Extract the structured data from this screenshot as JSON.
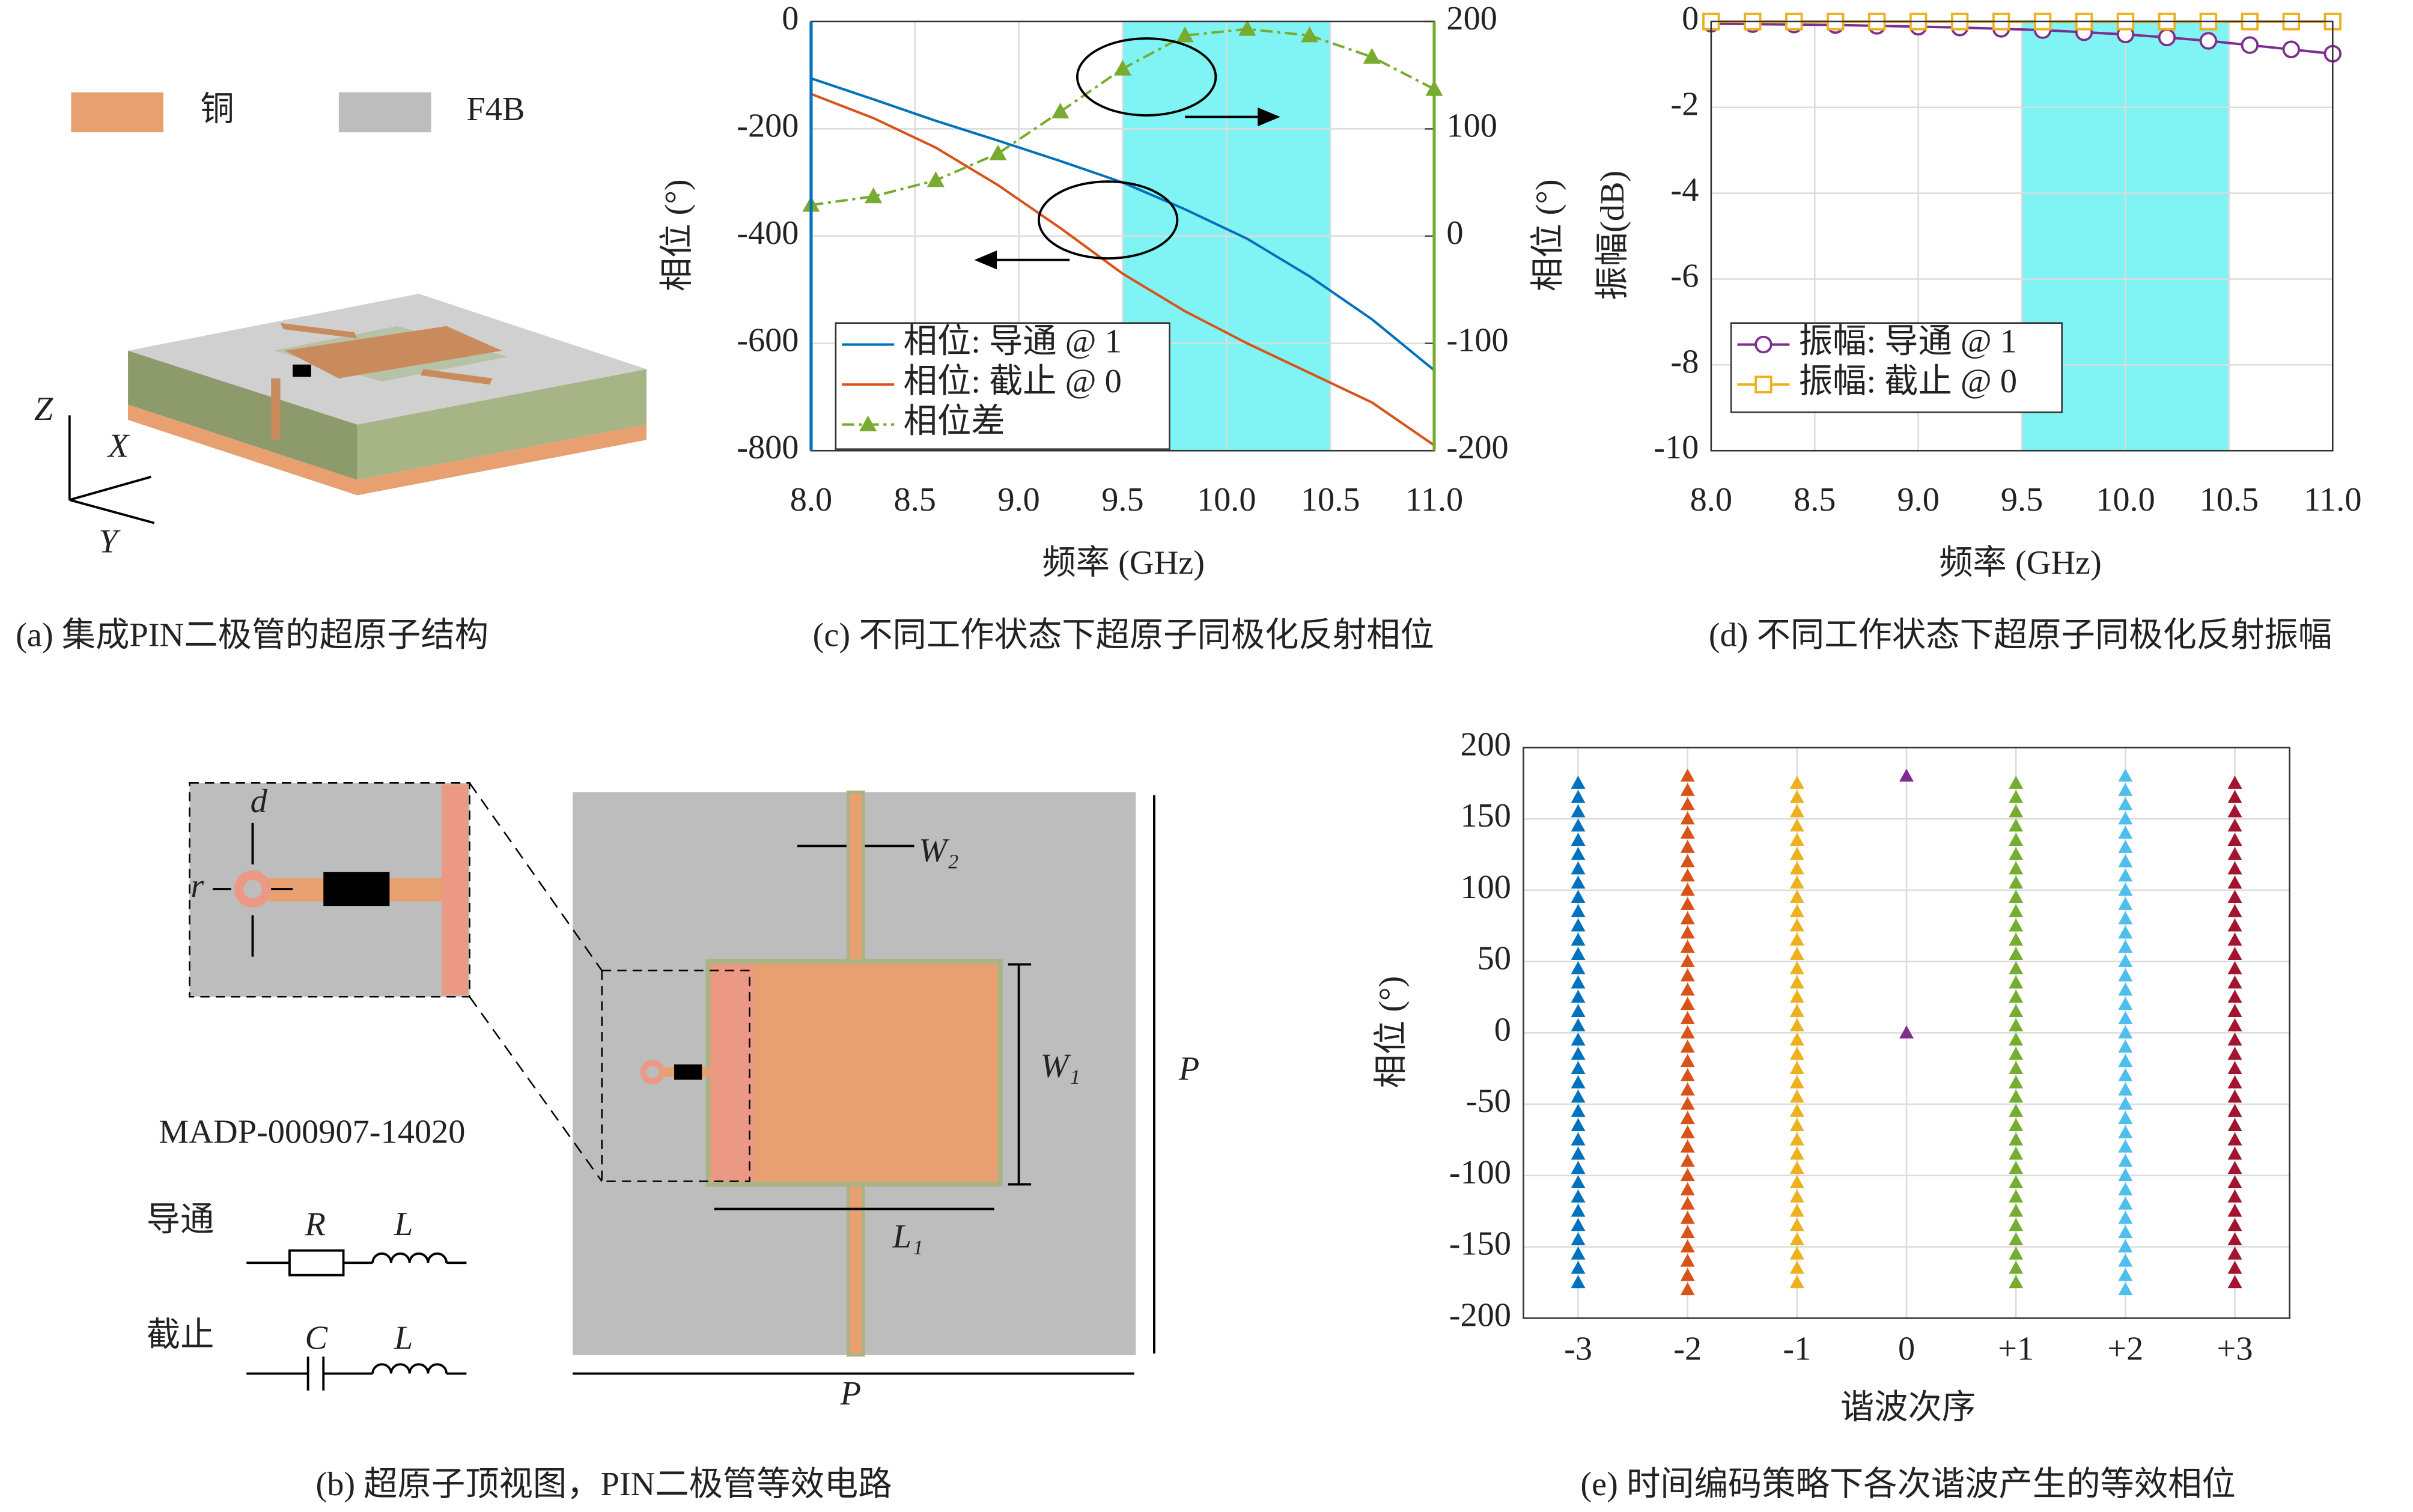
{
  "figure_a": {
    "legend": [
      "铜",
      "F4B"
    ],
    "axes": [
      "Z",
      "X",
      "Y"
    ],
    "caption": "(a) 集成PIN二极管的超原子结构"
  },
  "figure_b": {
    "labels": {
      "d": "d",
      "r": "r",
      "w2": "W₂",
      "w1": "W₁",
      "p_side": "P",
      "p_bottom": "P",
      "l1": "L₁"
    },
    "part": "MADP-000907-14020",
    "on": "导通",
    "on_r": "R",
    "on_l": "L",
    "off": "截止",
    "off_c": "C",
    "off_l": "L",
    "caption": "(b) 超原子顶视图，PIN二极管等效电路"
  },
  "chart_data": [
    {
      "type": "line",
      "caption": "(c) 不同工作状态下超原子同极化反射相位",
      "xlabel": "频率 (GHz)",
      "ylabel": "相位 (°)",
      "y2label": "相位 (°)",
      "x": [
        8,
        8.3,
        8.6,
        8.9,
        9.2,
        9.5,
        9.8,
        10.1,
        10.4,
        10.7,
        11
      ],
      "xlim": [
        8,
        11
      ],
      "xticks": [
        {
          "value": 8,
          "label": "8.0"
        },
        8.5,
        {
          "value": 9,
          "label": "9.0"
        },
        9.5,
        {
          "value": 10,
          "label": "10.0"
        },
        10.5,
        {
          "value": 11,
          "label": "11.0"
        }
      ],
      "ylim": [
        -800,
        0
      ],
      "yticks": [
        0,
        -200,
        -400,
        -600,
        -800
      ],
      "y2lim": [
        -200,
        200
      ],
      "y2ticks": [
        200,
        100,
        0,
        -100,
        -200
      ],
      "grid": true,
      "legend": "lower left",
      "highlight": [
        9.5,
        10.5
      ],
      "highlight_color": "#80f4f4",
      "axis_colors": {
        "y": "#0072bd",
        "y2": "#77ac30"
      },
      "series": [
        {
          "name": "相位: 导通 @ 1",
          "color": "#0072bd",
          "values": [
            -106,
            -145,
            -185,
            -222,
            -260,
            -300,
            -350,
            -405,
            -475,
            -555,
            -650
          ]
        },
        {
          "name": "相位: 截止 @ 0",
          "color": "#d95319",
          "values": [
            -135,
            -180,
            -235,
            -305,
            -385,
            -470,
            -540,
            -600,
            -655,
            -710,
            -790
          ]
        },
        {
          "name": "相位差",
          "color": "#77ac30",
          "axis": "y2",
          "marker": "triangle",
          "linestyle": "dashdot",
          "values": [
            29,
            37,
            52,
            77,
            116,
            156,
            187,
            193,
            187,
            167,
            137
          ]
        }
      ]
    },
    {
      "type": "line",
      "caption": "(d) 不同工作状态下超原子同极化反射振幅",
      "xlabel": "频率 (GHz)",
      "ylabel": "振幅(dB)",
      "x": [
        8,
        8.2,
        8.4,
        8.6,
        8.8,
        9,
        9.2,
        9.4,
        9.6,
        9.8,
        10,
        10.2,
        10.4,
        10.6,
        10.8,
        11
      ],
      "xlim": [
        8,
        11
      ],
      "xticks": [
        {
          "value": 8,
          "label": "8.0"
        },
        8.5,
        {
          "value": 9,
          "label": "9.0"
        },
        9.5,
        {
          "value": 10,
          "label": "10.0"
        },
        10.5,
        {
          "value": 11,
          "label": "11.0"
        }
      ],
      "ylim": [
        -10,
        0
      ],
      "yticks": [
        0,
        -2,
        -4,
        -6,
        -8,
        -10
      ],
      "grid": true,
      "legend": "lower left",
      "highlight": [
        9.5,
        10.5
      ],
      "highlight_color": "#80f4f4",
      "series": [
        {
          "name": "振幅: 导通 @ 1",
          "color": "#7e2f8e",
          "marker": "circle",
          "values": [
            -0.05,
            -0.06,
            -0.07,
            -0.08,
            -0.1,
            -0.12,
            -0.14,
            -0.17,
            -0.2,
            -0.25,
            -0.3,
            -0.37,
            -0.45,
            -0.55,
            -0.65,
            -0.75
          ]
        },
        {
          "name": "振幅: 截止 @ 0",
          "color": "#edb120",
          "marker": "square",
          "values": [
            0,
            0,
            0,
            0,
            0,
            0,
            0,
            0,
            0,
            0,
            0,
            0,
            0,
            0,
            0,
            0
          ]
        }
      ]
    },
    {
      "type": "scatter",
      "caption": "(e) 时间编码策略下各次谐波产生的等效相位",
      "xlabel": "谐波次序",
      "ylabel": "相位 (°)",
      "categories": [
        "-3",
        "-2",
        "-1",
        "0",
        "+1",
        "+2",
        "+3"
      ],
      "ylim": [
        -200,
        200
      ],
      "yticks": [
        200,
        150,
        100,
        50,
        0,
        -50,
        -100,
        -150,
        -200
      ],
      "grid": true,
      "series": [
        {
          "color": "#0072bd",
          "values": [
            -175,
            -165,
            -155,
            -145,
            -135,
            -125,
            -115,
            -105,
            -95,
            -85,
            -75,
            -65,
            -55,
            -45,
            -35,
            -25,
            -15,
            -5,
            5,
            15,
            25,
            35,
            45,
            55,
            65,
            75,
            85,
            95,
            105,
            115,
            125,
            135,
            145,
            155,
            165,
            175
          ]
        },
        {
          "color": "#d95319",
          "values": [
            -180,
            -170,
            -160,
            -150,
            -140,
            -130,
            -120,
            -110,
            -100,
            -90,
            -80,
            -70,
            -60,
            -50,
            -40,
            -30,
            -20,
            -10,
            0,
            10,
            20,
            30,
            40,
            50,
            60,
            70,
            80,
            90,
            100,
            110,
            120,
            130,
            140,
            150,
            160,
            170,
            180
          ]
        },
        {
          "color": "#edb120",
          "values": [
            -175,
            -165,
            -155,
            -145,
            -135,
            -125,
            -115,
            -105,
            -95,
            -85,
            -75,
            -65,
            -55,
            -45,
            -35,
            -25,
            -15,
            -5,
            5,
            15,
            25,
            35,
            45,
            55,
            65,
            75,
            85,
            95,
            105,
            115,
            125,
            135,
            145,
            155,
            165,
            175
          ]
        },
        {
          "color": "#7e2f8e",
          "values": [
            180,
            0
          ]
        },
        {
          "color": "#77ac30",
          "values": [
            -175,
            -165,
            -155,
            -145,
            -135,
            -125,
            -115,
            -105,
            -95,
            -85,
            -75,
            -65,
            -55,
            -45,
            -35,
            -25,
            -15,
            -5,
            5,
            15,
            25,
            35,
            45,
            55,
            65,
            75,
            85,
            95,
            105,
            115,
            125,
            135,
            145,
            155,
            165,
            175
          ]
        },
        {
          "color": "#4dbeee",
          "values": [
            -180,
            -170,
            -160,
            -150,
            -140,
            -130,
            -120,
            -110,
            -100,
            -90,
            -80,
            -70,
            -60,
            -50,
            -40,
            -30,
            -20,
            -10,
            0,
            10,
            20,
            30,
            40,
            50,
            60,
            70,
            80,
            90,
            100,
            110,
            120,
            130,
            140,
            150,
            160,
            170,
            180
          ]
        },
        {
          "color": "#a2142f",
          "values": [
            -175,
            -165,
            -155,
            -145,
            -135,
            -125,
            -115,
            -105,
            -95,
            -85,
            -75,
            -65,
            -55,
            -45,
            -35,
            -25,
            -15,
            -5,
            5,
            15,
            25,
            35,
            45,
            55,
            65,
            75,
            85,
            95,
            105,
            115,
            125,
            135,
            145,
            155,
            165,
            175
          ]
        }
      ]
    }
  ]
}
